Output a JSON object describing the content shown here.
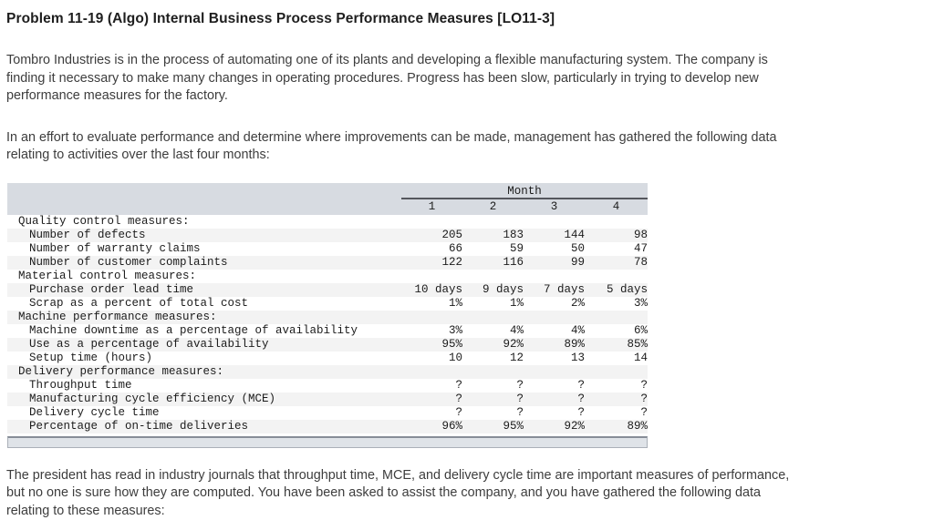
{
  "title": "Problem 11-19 (Algo) Internal Business Process Performance Measures [LO11-3]",
  "paragraphs": {
    "p1": "Tombro Industries is in the process of automating one of its plants and developing a flexible manufacturing system. The company is\nfinding it necessary to make many changes in operating procedures. Progress has been slow, particularly in trying to develop new\nperformance measures for the factory.",
    "p2": "In an effort to evaluate performance and determine where improvements can be made, management has gathered the following data\nrelating to activities over the last four months:",
    "p3": "The president has read in industry journals that throughput time, MCE, and delivery cycle time are important measures of performance,\nbut no one is sure how they are computed. You have been asked to assist the company, and you have gathered the following data\nrelating to these measures:"
  },
  "table": {
    "group_header": "Month",
    "columns": [
      "1",
      "2",
      "3",
      "4"
    ],
    "rows": [
      {
        "label": "Quality control measures:",
        "type": "section",
        "values": [
          "",
          "",
          "",
          ""
        ]
      },
      {
        "label": "Number of defects",
        "type": "item",
        "values": [
          "205",
          "183",
          "144",
          "98"
        ]
      },
      {
        "label": "Number of warranty claims",
        "type": "item",
        "values": [
          "66",
          "59",
          "50",
          "47"
        ]
      },
      {
        "label": "Number of customer complaints",
        "type": "item",
        "values": [
          "122",
          "116",
          "99",
          "78"
        ]
      },
      {
        "label": "Material control measures:",
        "type": "section",
        "values": [
          "",
          "",
          "",
          ""
        ]
      },
      {
        "label": "Purchase order lead time",
        "type": "item",
        "values": [
          "10 days",
          "9 days",
          "7 days",
          "5 days"
        ]
      },
      {
        "label": "Scrap as a percent of total cost",
        "type": "item",
        "values": [
          "1%",
          "1%",
          "2%",
          "3%"
        ]
      },
      {
        "label": "Machine performance measures:",
        "type": "section",
        "values": [
          "",
          "",
          "",
          ""
        ]
      },
      {
        "label": "Machine downtime as a percentage of availability",
        "type": "item",
        "values": [
          "3%",
          "4%",
          "4%",
          "6%"
        ]
      },
      {
        "label": "Use as a percentage of availability",
        "type": "item",
        "values": [
          "95%",
          "92%",
          "89%",
          "85%"
        ]
      },
      {
        "label": "Setup time (hours)",
        "type": "item",
        "values": [
          "10",
          "12",
          "13",
          "14"
        ]
      },
      {
        "label": "Delivery performance measures:",
        "type": "section",
        "values": [
          "",
          "",
          "",
          ""
        ]
      },
      {
        "label": "Throughput time",
        "type": "item",
        "values": [
          "?",
          "?",
          "?",
          "?"
        ]
      },
      {
        "label": "Manufacturing cycle efficiency (MCE)",
        "type": "item",
        "values": [
          "?",
          "?",
          "?",
          "?"
        ]
      },
      {
        "label": "Delivery cycle time",
        "type": "item",
        "values": [
          "?",
          "?",
          "?",
          "?"
        ]
      },
      {
        "label": "Percentage of on-time deliveries",
        "type": "item",
        "values": [
          "96%",
          "95%",
          "92%",
          "89%"
        ]
      }
    ]
  },
  "colors": {
    "header_band": "#d7dbe1",
    "row_stripe": "#f3f3f3",
    "rule": "#54575d"
  }
}
